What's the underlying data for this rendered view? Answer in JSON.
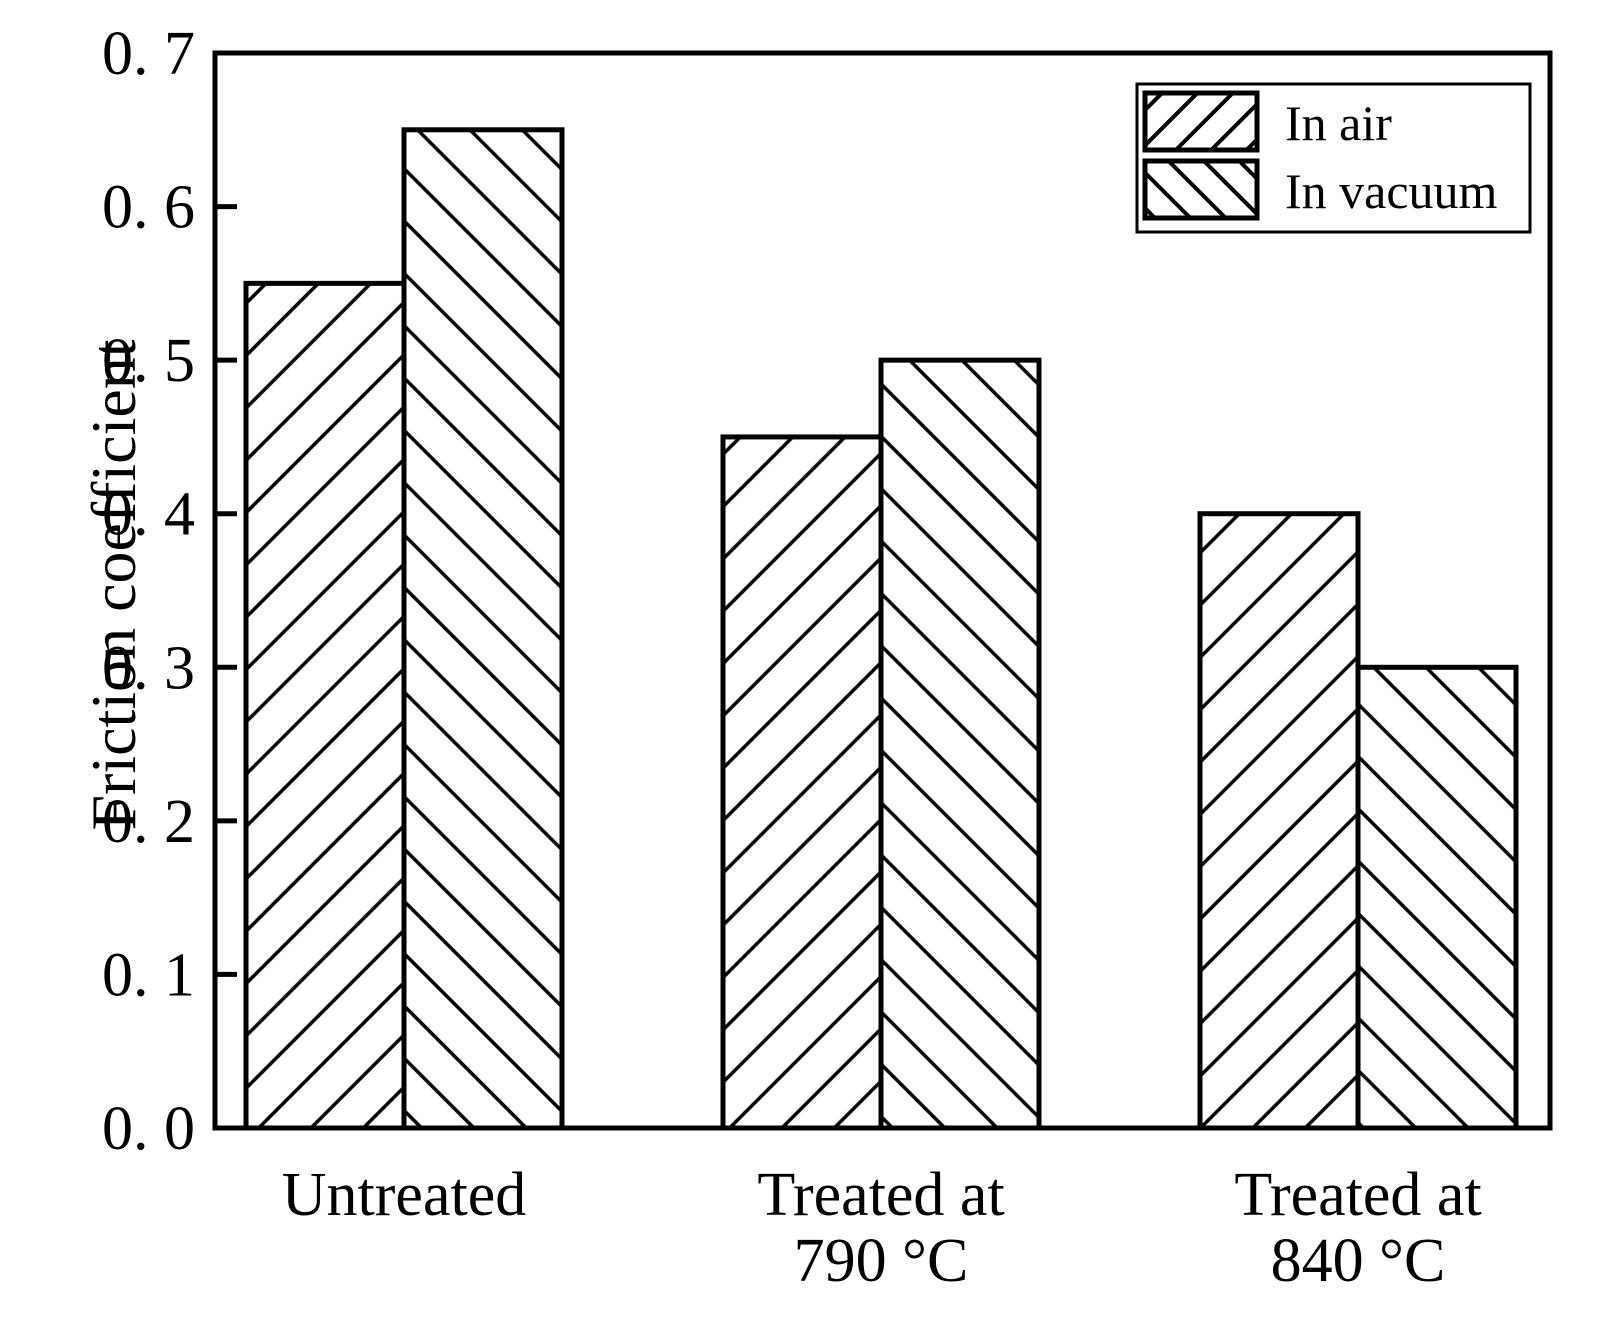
{
  "figure": {
    "background_color": "#ffffff",
    "ink_color": "#000000"
  },
  "chart_data": {
    "type": "bar",
    "title": "",
    "xlabel": "",
    "ylabel": "Friction coefficient",
    "ylim": [
      0.0,
      0.7
    ],
    "grid": false,
    "legend_position": "top-right-inside",
    "categories": [
      "Untreated",
      "Treated at 790 °C",
      "Treated at 840 °C"
    ],
    "categories_lines": [
      [
        "Untreated"
      ],
      [
        "Treated at",
        "790 °C"
      ],
      [
        "Treated at",
        "840 °C"
      ]
    ],
    "series": [
      {
        "name": "In air",
        "hatch": "forward-diagonal",
        "values": [
          0.55,
          0.45,
          0.4
        ]
      },
      {
        "name": "In vacuum",
        "hatch": "backward-diagonal",
        "values": [
          0.65,
          0.5,
          0.3
        ]
      }
    ],
    "yticks": [
      {
        "value": 0.0,
        "label": "0. 0"
      },
      {
        "value": 0.1,
        "label": "0. 1"
      },
      {
        "value": 0.2,
        "label": "0. 2"
      },
      {
        "value": 0.3,
        "label": "0. 3"
      },
      {
        "value": 0.4,
        "label": "0. 4"
      },
      {
        "value": 0.5,
        "label": "0. 5"
      },
      {
        "value": 0.6,
        "label": "0. 6"
      },
      {
        "value": 0.7,
        "label": "0. 7"
      }
    ]
  }
}
